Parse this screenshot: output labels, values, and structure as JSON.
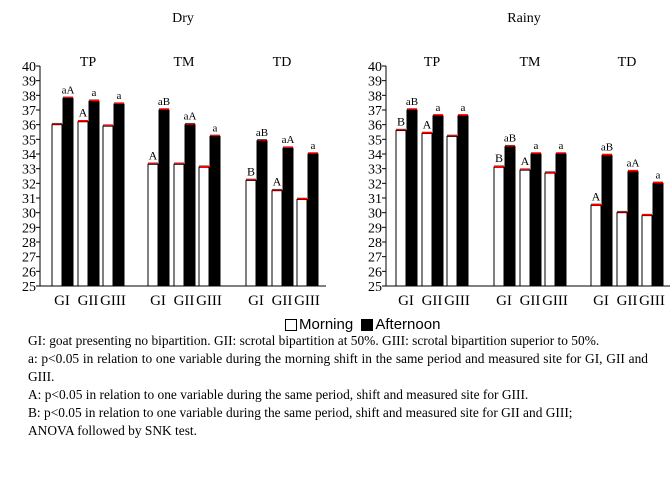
{
  "chart_data": {
    "type": "bar",
    "panels": [
      {
        "title": "Dry",
        "groups": [
          {
            "label": "TP",
            "categories": [
              "GI",
              "GII",
              "GIII"
            ],
            "morning": [
              36.0,
              36.2,
              35.9
            ],
            "afternoon": [
              37.8,
              37.6,
              37.4
            ],
            "morning_err": [
              0.05,
              0.05,
              0.05
            ],
            "afternoon_err": [
              0.1,
              0.1,
              0.1
            ],
            "annot_m": [
              "",
              "A",
              ""
            ],
            "annot_a": [
              "aA",
              "a",
              "a"
            ]
          },
          {
            "label": "TM",
            "categories": [
              "GI",
              "GII",
              "GIII"
            ],
            "morning": [
              33.3,
              33.3,
              33.1
            ],
            "afternoon": [
              37.0,
              36.0,
              35.2
            ],
            "morning_err": [
              0.05,
              0.05,
              0.05
            ],
            "afternoon_err": [
              0.15,
              0.15,
              0.1
            ],
            "annot_m": [
              "A",
              "",
              ""
            ],
            "annot_a": [
              "aB",
              "aA",
              "a"
            ]
          },
          {
            "label": "TD",
            "categories": [
              "GI",
              "GII",
              "GIII"
            ],
            "morning": [
              32.2,
              31.5,
              30.9
            ],
            "afternoon": [
              34.9,
              34.4,
              34.0
            ],
            "morning_err": [
              0.05,
              0.05,
              0.05
            ],
            "afternoon_err": [
              0.1,
              0.1,
              0.1
            ],
            "annot_m": [
              "B",
              "A",
              ""
            ],
            "annot_a": [
              "aB",
              "aA",
              "a"
            ]
          }
        ]
      },
      {
        "title": "Rainy",
        "groups": [
          {
            "label": "TP",
            "categories": [
              "GI",
              "GII",
              "GIII"
            ],
            "morning": [
              35.6,
              35.4,
              35.2
            ],
            "afternoon": [
              37.0,
              36.6,
              36.6
            ],
            "morning_err": [
              0.1,
              0.1,
              0.05
            ],
            "afternoon_err": [
              0.1,
              0.1,
              0.1
            ],
            "annot_m": [
              "B",
              "A",
              ""
            ],
            "annot_a": [
              "aB",
              "a",
              "a"
            ]
          },
          {
            "label": "TM",
            "categories": [
              "GI",
              "GII",
              "GIII"
            ],
            "morning": [
              33.1,
              32.9,
              32.7
            ],
            "afternoon": [
              34.5,
              34.0,
              34.0
            ],
            "morning_err": [
              0.05,
              0.05,
              0.05
            ],
            "afternoon_err": [
              0.15,
              0.1,
              0.1
            ],
            "annot_m": [
              "B",
              "A",
              ""
            ],
            "annot_a": [
              "aB",
              "a",
              "a"
            ]
          },
          {
            "label": "TD",
            "categories": [
              "GI",
              "GII",
              "GIII"
            ],
            "morning": [
              30.5,
              30.0,
              29.8
            ],
            "afternoon": [
              33.9,
              32.8,
              32.0
            ],
            "morning_err": [
              0.15,
              0.15,
              0.1
            ],
            "afternoon_err": [
              0.1,
              0.1,
              0.1
            ],
            "annot_m": [
              "A",
              "",
              ""
            ],
            "annot_a": [
              "aB",
              "aA",
              "a"
            ]
          }
        ]
      }
    ],
    "ylim": [
      25,
      40
    ],
    "yticks": [
      25,
      26,
      27,
      28,
      29,
      30,
      31,
      32,
      33,
      34,
      35,
      36,
      37,
      38,
      39,
      40
    ],
    "legend": {
      "position": "bottom-center",
      "entries": [
        "Morning",
        "Afternoon"
      ]
    },
    "colors": {
      "morning": "#ffffff",
      "afternoon": "#000000",
      "error": "#ff0000"
    },
    "grid": false
  },
  "legend": {
    "morning": "Morning",
    "afternoon": "Afternoon"
  },
  "notes": {
    "gi": "GI: goat presenting no bipartition. GII: scrotal bipartition at 50%. GIII: scrotal bipartition superior to 50%.",
    "a": "a: p<0.05 in relation to one variable during the morning shift in the same period and measured site for GI, GII and GIII.",
    "A": "A: p<0.05 in relation to one variable during the same period, shift and measured site for GIII.",
    "B": "B: p<0.05 in relation to one variable during the same period, shift and measured site for GII and GIII;",
    "anova": "ANOVA followed by SNK test."
  }
}
